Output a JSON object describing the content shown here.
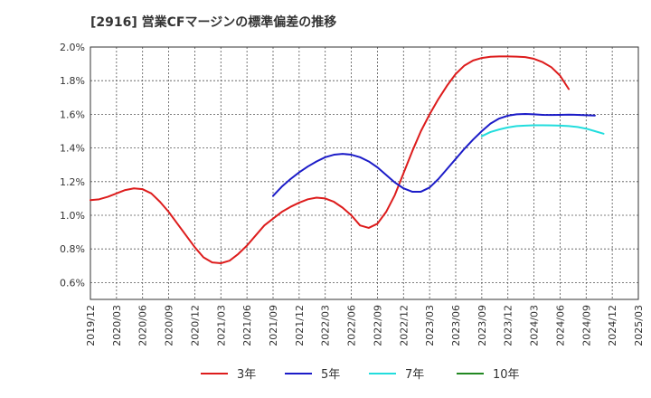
{
  "chart_data": {
    "type": "line",
    "title": "[2916]  営業CFマージンの標準偏差の推移",
    "xlabel": "",
    "ylabel": "",
    "ylim": [
      0.5,
      2.0
    ],
    "y_ticks": [
      0.6,
      0.8,
      1.0,
      1.2,
      1.4,
      1.6,
      1.8,
      2.0
    ],
    "y_tick_labels": [
      "0.6%",
      "0.8%",
      "1.0%",
      "1.2%",
      "1.4%",
      "1.6%",
      "1.8%",
      "2.0%"
    ],
    "x_ticks": [
      "2019/12",
      "2020/03",
      "2020/06",
      "2020/09",
      "2020/12",
      "2021/03",
      "2021/06",
      "2021/09",
      "2021/12",
      "2022/03",
      "2022/06",
      "2022/09",
      "2022/12",
      "2023/03",
      "2023/06",
      "2023/09",
      "2023/12",
      "2024/03",
      "2024/06",
      "2024/09",
      "2024/12",
      "2025/03"
    ],
    "grid": true,
    "legend_position": "bottom",
    "series": [
      {
        "name": "3年",
        "color": "#dd1c1c",
        "points": [
          [
            0,
            1.09
          ],
          [
            1,
            1.095
          ],
          [
            2,
            1.11
          ],
          [
            3,
            1.13
          ],
          [
            4,
            1.15
          ],
          [
            5,
            1.16
          ],
          [
            6,
            1.155
          ],
          [
            7,
            1.13
          ],
          [
            8,
            1.08
          ],
          [
            9,
            1.02
          ],
          [
            10,
            0.95
          ],
          [
            11,
            0.88
          ],
          [
            12,
            0.81
          ],
          [
            13,
            0.75
          ],
          [
            14,
            0.72
          ],
          [
            15,
            0.715
          ],
          [
            16,
            0.73
          ],
          [
            17,
            0.77
          ],
          [
            18,
            0.82
          ],
          [
            19,
            0.88
          ],
          [
            20,
            0.94
          ],
          [
            21,
            0.98
          ],
          [
            22,
            1.02
          ],
          [
            23,
            1.05
          ],
          [
            24,
            1.075
          ],
          [
            25,
            1.095
          ],
          [
            26,
            1.105
          ],
          [
            27,
            1.1
          ],
          [
            28,
            1.08
          ],
          [
            29,
            1.045
          ],
          [
            30,
            1.0
          ],
          [
            31,
            0.94
          ],
          [
            32,
            0.925
          ],
          [
            33,
            0.95
          ],
          [
            34,
            1.02
          ],
          [
            35,
            1.12
          ],
          [
            36,
            1.25
          ],
          [
            37,
            1.38
          ],
          [
            38,
            1.5
          ],
          [
            39,
            1.6
          ],
          [
            40,
            1.69
          ],
          [
            41,
            1.77
          ],
          [
            42,
            1.84
          ],
          [
            43,
            1.89
          ],
          [
            44,
            1.92
          ],
          [
            45,
            1.935
          ],
          [
            46,
            1.942
          ],
          [
            47,
            1.944
          ],
          [
            48,
            1.944
          ],
          [
            49,
            1.943
          ],
          [
            50,
            1.94
          ],
          [
            51,
            1.93
          ],
          [
            52,
            1.91
          ],
          [
            53,
            1.88
          ],
          [
            54,
            1.83
          ],
          [
            55,
            1.75
          ]
        ]
      },
      {
        "name": "5年",
        "color": "#1c1cc8",
        "points": [
          [
            21,
            1.115
          ],
          [
            22,
            1.17
          ],
          [
            23,
            1.215
          ],
          [
            24,
            1.255
          ],
          [
            25,
            1.29
          ],
          [
            26,
            1.32
          ],
          [
            27,
            1.345
          ],
          [
            28,
            1.36
          ],
          [
            29,
            1.365
          ],
          [
            30,
            1.36
          ],
          [
            31,
            1.345
          ],
          [
            32,
            1.32
          ],
          [
            33,
            1.285
          ],
          [
            34,
            1.24
          ],
          [
            35,
            1.195
          ],
          [
            36,
            1.16
          ],
          [
            37,
            1.14
          ],
          [
            38,
            1.14
          ],
          [
            39,
            1.165
          ],
          [
            40,
            1.215
          ],
          [
            41,
            1.275
          ],
          [
            42,
            1.335
          ],
          [
            43,
            1.395
          ],
          [
            44,
            1.45
          ],
          [
            45,
            1.5
          ],
          [
            46,
            1.545
          ],
          [
            47,
            1.575
          ],
          [
            48,
            1.592
          ],
          [
            49,
            1.6
          ],
          [
            50,
            1.602
          ],
          [
            51,
            1.6
          ],
          [
            52,
            1.597
          ],
          [
            53,
            1.596
          ],
          [
            54,
            1.597
          ],
          [
            55,
            1.598
          ],
          [
            56,
            1.597
          ],
          [
            57,
            1.595
          ],
          [
            58,
            1.593
          ]
        ]
      },
      {
        "name": "7年",
        "color": "#22dddd",
        "points": [
          [
            45,
            1.47
          ],
          [
            46,
            1.495
          ],
          [
            47,
            1.51
          ],
          [
            48,
            1.522
          ],
          [
            49,
            1.53
          ],
          [
            50,
            1.533
          ],
          [
            51,
            1.535
          ],
          [
            52,
            1.535
          ],
          [
            53,
            1.534
          ],
          [
            54,
            1.533
          ],
          [
            55,
            1.53
          ],
          [
            56,
            1.525
          ],
          [
            57,
            1.515
          ],
          [
            58,
            1.5
          ],
          [
            59,
            1.485
          ]
        ]
      },
      {
        "name": "10年",
        "color": "#228822",
        "points": []
      }
    ]
  }
}
